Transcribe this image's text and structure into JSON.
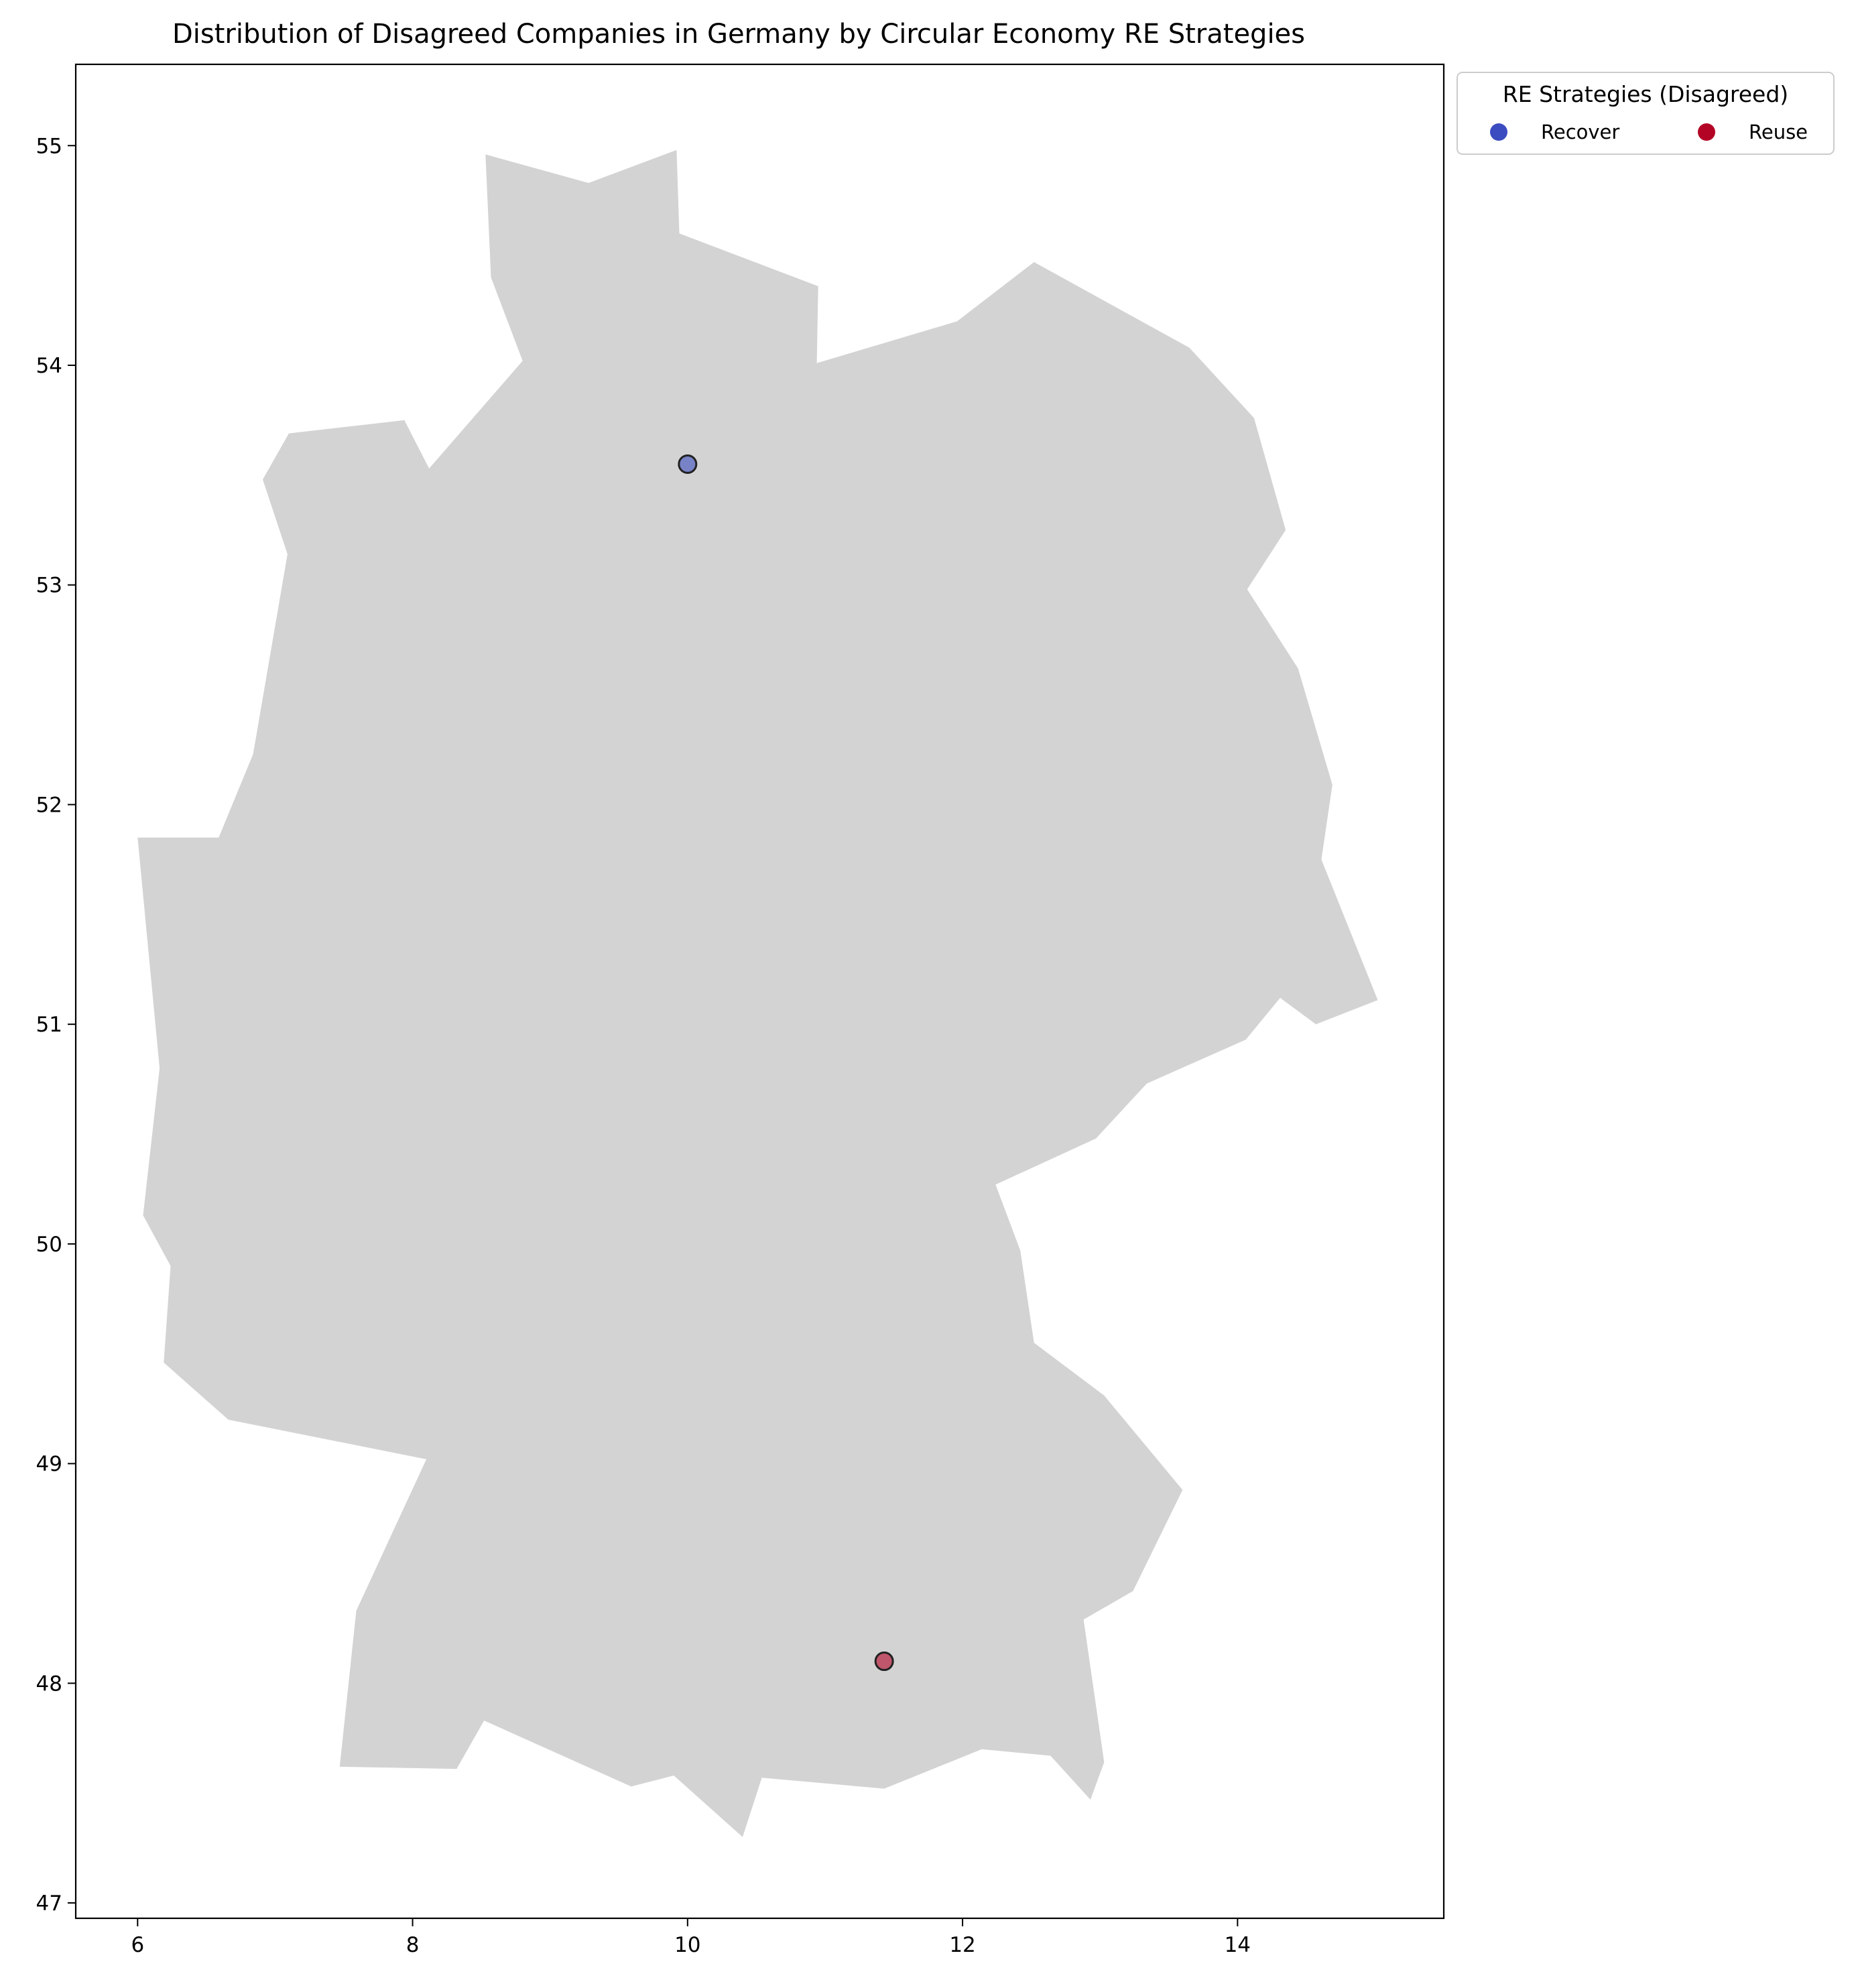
{
  "chart_data": {
    "type": "scatter",
    "title": "Distribution of Disagreed Companies in Germany by Circular Economy RE Strategies",
    "xlabel": "",
    "ylabel": "",
    "xlim": [
      5.55,
      15.5
    ],
    "ylim": [
      46.93,
      55.37
    ],
    "xticks": [
      6,
      8,
      10,
      12,
      14
    ],
    "yticks": [
      47,
      48,
      49,
      50,
      51,
      52,
      53,
      54,
      55
    ],
    "grid": false,
    "legend": {
      "title": "RE Strategies (Disagreed)",
      "placement": "outside upper right",
      "entries": [
        {
          "label": "Recover",
          "color": "#3b4cc0"
        },
        {
          "label": "Reuse",
          "color": "#b40426"
        }
      ]
    },
    "base_map": {
      "region": "Germany",
      "fill_color": "#d3d3d3",
      "outline_lonlat": [
        [
          9.92,
          54.98
        ],
        [
          9.94,
          54.6
        ],
        [
          10.95,
          54.36
        ],
        [
          10.94,
          54.01
        ],
        [
          11.96,
          54.2
        ],
        [
          12.52,
          54.47
        ],
        [
          13.65,
          54.08
        ],
        [
          14.12,
          53.76
        ],
        [
          14.35,
          53.25
        ],
        [
          14.07,
          52.98
        ],
        [
          14.44,
          52.62
        ],
        [
          14.69,
          52.09
        ],
        [
          14.61,
          51.75
        ],
        [
          15.02,
          51.11
        ],
        [
          14.57,
          51.0
        ],
        [
          14.31,
          51.12
        ],
        [
          14.06,
          50.93
        ],
        [
          13.34,
          50.73
        ],
        [
          12.97,
          50.48
        ],
        [
          12.24,
          50.27
        ],
        [
          12.42,
          49.97
        ],
        [
          12.52,
          49.55
        ],
        [
          13.03,
          49.31
        ],
        [
          13.6,
          48.88
        ],
        [
          13.24,
          48.42
        ],
        [
          12.88,
          48.29
        ],
        [
          13.03,
          47.64
        ],
        [
          12.93,
          47.47
        ],
        [
          12.64,
          47.67
        ],
        [
          12.14,
          47.7
        ],
        [
          11.43,
          47.52
        ],
        [
          10.54,
          47.57
        ],
        [
          10.4,
          47.3
        ],
        [
          9.9,
          47.58
        ],
        [
          9.59,
          47.53
        ],
        [
          8.52,
          47.83
        ],
        [
          8.32,
          47.61
        ],
        [
          7.47,
          47.62
        ],
        [
          7.59,
          48.33
        ],
        [
          8.1,
          49.02
        ],
        [
          6.66,
          49.2
        ],
        [
          6.19,
          49.46
        ],
        [
          6.24,
          49.9
        ],
        [
          6.04,
          50.13
        ],
        [
          6.16,
          50.8
        ],
        [
          6.0,
          51.85
        ],
        [
          6.59,
          51.85
        ],
        [
          6.84,
          52.23
        ],
        [
          7.09,
          53.14
        ],
        [
          6.91,
          53.48
        ],
        [
          7.1,
          53.69
        ],
        [
          7.94,
          53.75
        ],
        [
          8.12,
          53.53
        ],
        [
          8.8,
          54.02
        ],
        [
          8.57,
          54.4
        ],
        [
          8.53,
          54.96
        ],
        [
          9.28,
          54.83
        ]
      ]
    },
    "series": [
      {
        "name": "Recover",
        "color": "#3b4cc0",
        "points": [
          {
            "lon": 10.0,
            "lat": 53.55
          }
        ]
      },
      {
        "name": "Reuse",
        "color": "#b40426",
        "points": [
          {
            "lon": 11.43,
            "lat": 48.1
          }
        ]
      }
    ]
  }
}
